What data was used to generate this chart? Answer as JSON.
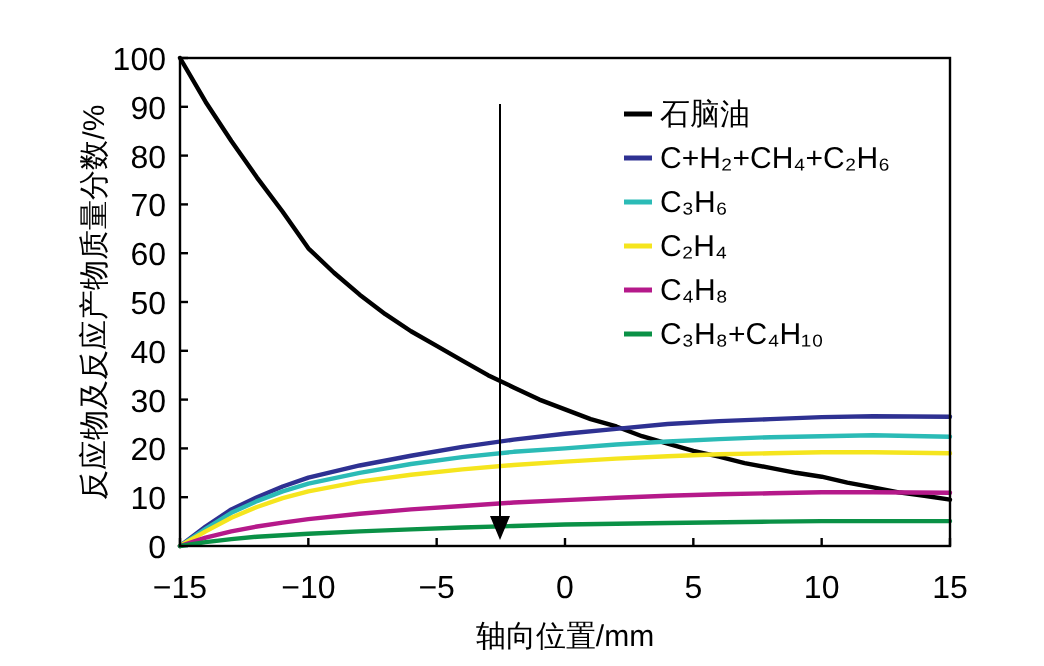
{
  "chart_data": {
    "type": "line",
    "xlabel": "轴向位置/mm",
    "ylabel": "反应物及反应产物质量分数/%",
    "xlim": [
      -15,
      15
    ],
    "ylim": [
      0,
      100
    ],
    "xticks": [
      {
        "value": -15,
        "label": "−15"
      },
      {
        "value": -10,
        "label": "−10"
      },
      {
        "value": -5,
        "label": "−5"
      },
      0,
      5,
      10,
      15
    ],
    "yticks": [
      0,
      10,
      20,
      30,
      40,
      50,
      60,
      70,
      80,
      90,
      100
    ],
    "grid": false,
    "legend": "top right",
    "marker": "none",
    "line_style": "solid",
    "series": [
      {
        "name": "石脑油",
        "color": "#000000",
        "x": [
          -15,
          -14,
          -13,
          -12,
          -11,
          -10,
          -9,
          -8,
          -7,
          -6,
          -5,
          -4,
          -3,
          -2,
          -1,
          0,
          1,
          2,
          3,
          4,
          5,
          6,
          7,
          8,
          9,
          10,
          11,
          12,
          13,
          14,
          15
        ],
        "values": [
          100,
          91,
          83,
          75.5,
          68.5,
          61,
          56,
          51.5,
          47.5,
          44,
          41,
          38,
          35,
          32.5,
          30,
          28,
          26,
          24.5,
          22.5,
          21,
          19.5,
          18.3,
          17,
          16,
          15,
          14.2,
          13,
          12,
          11,
          10.3,
          9.5
        ]
      },
      {
        "name": "C+H₂+CH₄+C₂H₆",
        "color": "#2e3192",
        "x": [
          -15,
          -14,
          -13,
          -12,
          -11,
          -10,
          -8,
          -6,
          -4,
          -2,
          0,
          2,
          4,
          6,
          8,
          10,
          12,
          15
        ],
        "values": [
          0,
          4,
          7.5,
          10,
          12.2,
          14,
          16.5,
          18.5,
          20.3,
          21.8,
          23,
          24,
          25,
          25.6,
          26,
          26.4,
          26.6,
          26.5
        ]
      },
      {
        "name": "C₃H₆",
        "color": "#2bbbb6",
        "x": [
          -15,
          -14,
          -13,
          -12,
          -11,
          -10,
          -8,
          -6,
          -4,
          -2,
          0,
          2,
          4,
          6,
          8,
          10,
          12,
          15
        ],
        "values": [
          0,
          3.5,
          6.8,
          9.2,
          11.2,
          12.8,
          15,
          16.8,
          18.2,
          19.3,
          20,
          20.8,
          21.4,
          21.9,
          22.3,
          22.5,
          22.7,
          22.4
        ]
      },
      {
        "name": "C₂H₄",
        "color": "#f5e51e",
        "x": [
          -15,
          -14,
          -13,
          -12,
          -11,
          -10,
          -8,
          -6,
          -4,
          -2,
          0,
          2,
          4,
          6,
          8,
          10,
          12,
          15
        ],
        "values": [
          0,
          3,
          5.8,
          8,
          9.8,
          11.2,
          13.2,
          14.6,
          15.7,
          16.6,
          17.3,
          17.9,
          18.4,
          18.8,
          19,
          19.2,
          19.2,
          19
        ]
      },
      {
        "name": "C₄H₈",
        "color": "#b5198a",
        "x": [
          -15,
          -14,
          -13,
          -12,
          -11,
          -10,
          -8,
          -6,
          -4,
          -2,
          0,
          2,
          4,
          6,
          8,
          10,
          12,
          15
        ],
        "values": [
          0,
          1.7,
          3,
          4,
          4.8,
          5.5,
          6.6,
          7.5,
          8.2,
          8.9,
          9.4,
          9.9,
          10.3,
          10.6,
          10.8,
          11,
          11,
          10.9
        ]
      },
      {
        "name": "C₃H₈+C₄H₁₀",
        "color": "#0a9146",
        "x": [
          -15,
          -14,
          -13,
          -12,
          -10,
          -8,
          -6,
          -4,
          -2,
          0,
          4,
          8,
          10,
          15
        ],
        "values": [
          0,
          0.8,
          1.4,
          1.9,
          2.5,
          3,
          3.4,
          3.8,
          4.1,
          4.4,
          4.7,
          5,
          5.1,
          5.1
        ]
      }
    ]
  }
}
